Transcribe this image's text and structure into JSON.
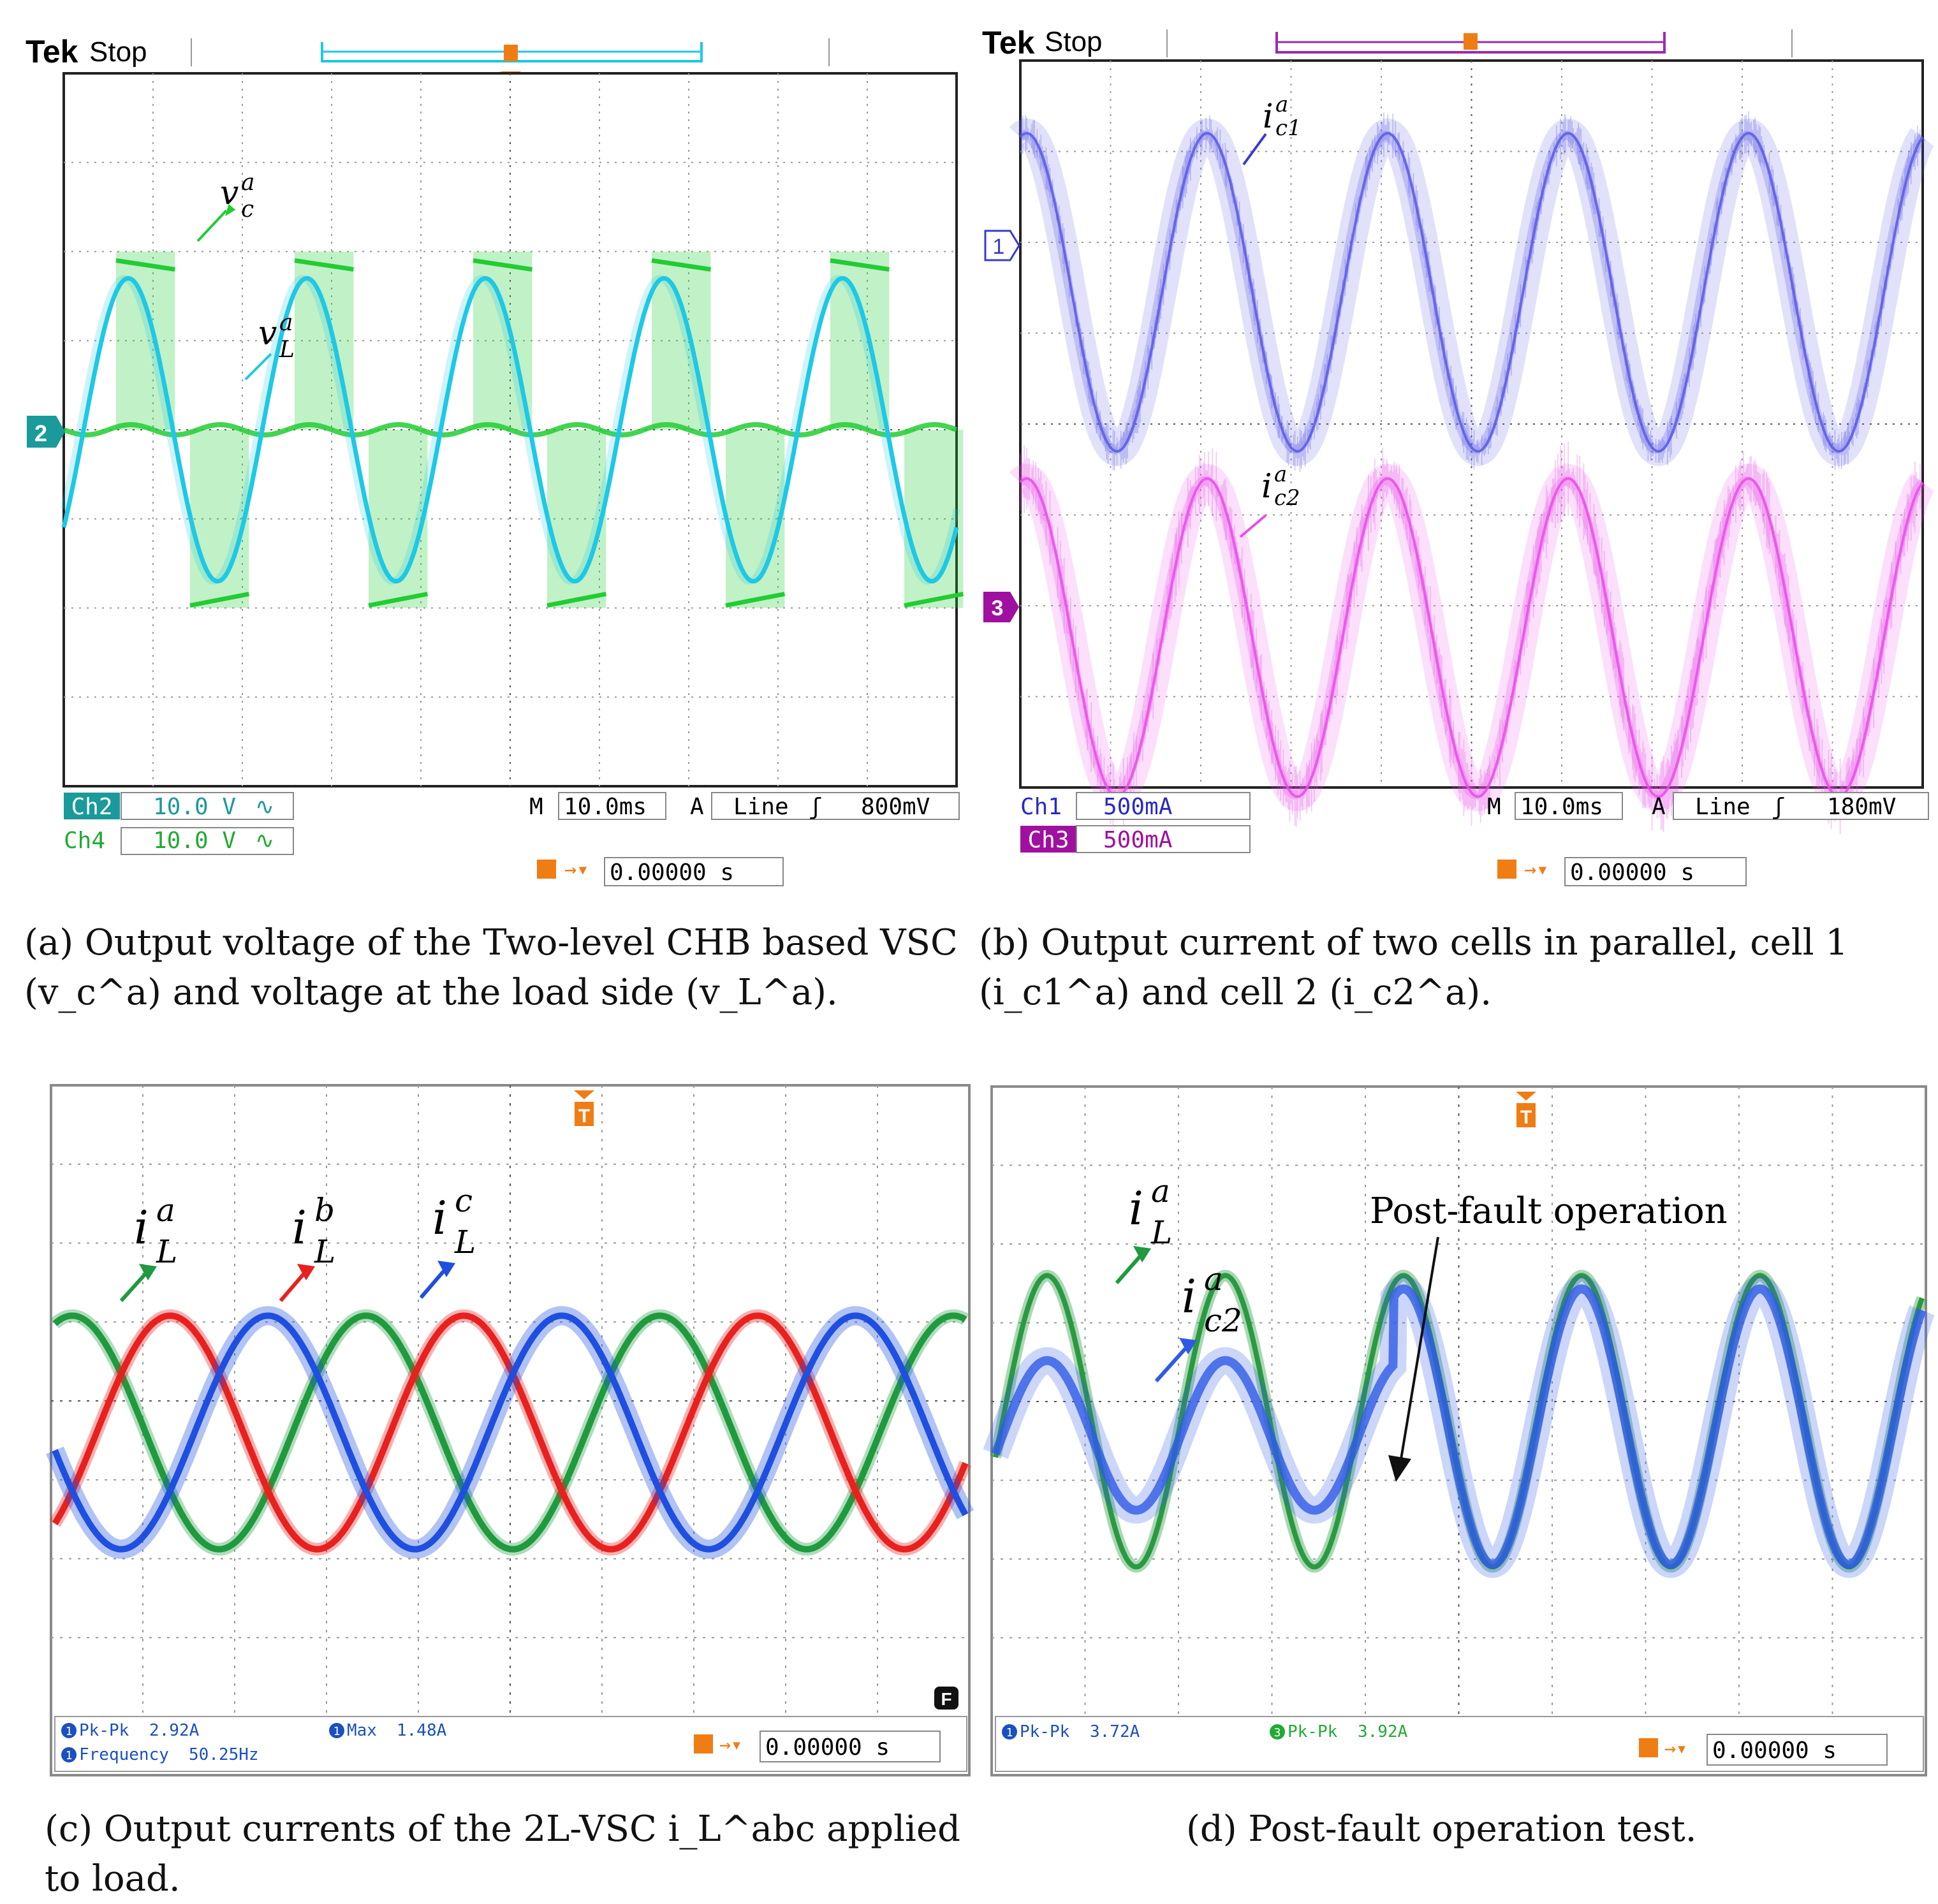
{
  "colors": {
    "ch2_cyan": "#1ec8e6",
    "ch4_green": "#22cc33",
    "ch1_blue": "#5a5ae6",
    "ch3_magenta": "#e84de8",
    "trigger_orange": "#f07d14",
    "ia_green": "#1f9a3e",
    "ib_red": "#e8201e",
    "ic_blue": "#1f4fe0",
    "post_green": "#2a9a42",
    "post_blue": "#2f5ae6",
    "ch2_badge": "#1a9a9a",
    "ch3_badge": "#a010a0"
  },
  "captions": {
    "a": "(a) Output voltage of the Two-level CHB based VSC (v_c^a) and voltage at the load side (v_L^a).",
    "b": "(b) Output current of two cells in parallel, cell 1 (i_c1^a) and cell 2 (i_c2^a).",
    "c": "(c) Output currents of the 2L-VSC i_L^abc applied to load.",
    "d": "(d) Post-fault operation test."
  },
  "chart_data": [
    {
      "panel": "a",
      "type": "line",
      "header": {
        "brand": "Tek",
        "state": "Stop",
        "trigger_marker": "T"
      },
      "grid": true,
      "divisions": {
        "x": 10,
        "y": 8
      },
      "time_per_div": "10.0ms",
      "series": [
        {
          "name": "v_L^a",
          "channel": "Ch2",
          "scale": "10.0 V",
          "coupling": "∿",
          "badge": "2",
          "waveform": "sine",
          "cycles": 5,
          "amplitude_div": 1.7,
          "offset_div": 0
        },
        {
          "name": "v_c^a",
          "channel": "Ch4",
          "scale": "10.0 V",
          "coupling": "∿",
          "waveform": "square",
          "cycles": 5,
          "amplitude_div": 2.0,
          "offset_div": 0
        }
      ],
      "labels": {
        "top": {
          "main": "v",
          "sup": "a",
          "sub": "c"
        },
        "bottom": {
          "main": "v",
          "sup": "a",
          "sub": "L"
        }
      },
      "footer": {
        "ch2_label": "Ch2",
        "ch2_scale": "10.0 V",
        "ch2_coupling": "∿",
        "ch4_label": "Ch4",
        "ch4_scale": "10.0 V",
        "ch4_coupling": "∿",
        "m_label": "M",
        "timebase": "10.0ms",
        "a_label": "A",
        "source": "Line",
        "slope": "ʃ",
        "level": "800mV",
        "trigger_time": "0.00000 s"
      }
    },
    {
      "panel": "b",
      "type": "line",
      "header": {
        "brand": "Tek",
        "state": "Stop",
        "trigger_marker": "T"
      },
      "grid": true,
      "divisions": {
        "x": 10,
        "y": 8
      },
      "time_per_div": "10.0ms",
      "series": [
        {
          "name": "i_c1^a",
          "channel": "Ch1",
          "scale": "500mA",
          "badge": "1",
          "waveform": "sine",
          "cycles": 5,
          "amplitude_div": 1.75,
          "offset_div": 1.45
        },
        {
          "name": "i_c2^a",
          "channel": "Ch3",
          "scale": "500mA",
          "badge": "3",
          "waveform": "sine",
          "cycles": 5,
          "amplitude_div": 1.75,
          "offset_div": -2.35
        }
      ],
      "labels": {
        "top": {
          "main": "i",
          "sup": "a",
          "sub": "c1"
        },
        "bottom": {
          "main": "i",
          "sup": "a",
          "sub": "c2"
        }
      },
      "footer": {
        "ch1_label": "Ch1",
        "ch1_scale": "500mA",
        "ch3_label": "Ch3",
        "ch3_scale": "500mA",
        "m_label": "M",
        "timebase": "10.0ms",
        "a_label": "A",
        "source": "Line",
        "slope": "ʃ",
        "level": "180mV",
        "trigger_time": "0.00000 s"
      }
    },
    {
      "panel": "c",
      "type": "line",
      "grid": true,
      "divisions": {
        "x": 10,
        "y": 8
      },
      "series": [
        {
          "name": "i_L^a",
          "phase_deg": 0,
          "cycles": 3.1,
          "amplitude_div": 1.48,
          "offset_div": 0.4
        },
        {
          "name": "i_L^b",
          "phase_deg": -120,
          "cycles": 3.1,
          "amplitude_div": 1.48,
          "offset_div": 0.4
        },
        {
          "name": "i_L^c",
          "phase_deg": 120,
          "cycles": 3.1,
          "amplitude_div": 1.48,
          "offset_div": 0.4
        }
      ],
      "labels": [
        {
          "main": "i",
          "sup": "a",
          "sub": "L"
        },
        {
          "main": "i",
          "sup": "b",
          "sub": "L"
        },
        {
          "main": "i",
          "sup": "c",
          "sub": "L"
        }
      ],
      "measurements": {
        "pkpk_label": "Pk-Pk",
        "pkpk": "2.92A",
        "max_label": "Max",
        "max": "1.48A",
        "freq_label": "Frequency",
        "frequency": "50.25Hz",
        "badge": "1",
        "f_badge": "F"
      },
      "footer": {
        "trigger_time": "0.00000 s"
      }
    },
    {
      "panel": "d",
      "type": "line",
      "grid": true,
      "divisions": {
        "x": 10,
        "y": 8
      },
      "annotation": "Post-fault operation",
      "series": [
        {
          "name": "i_L^a",
          "cycles": 5.2,
          "amplitude_div": 1.85
        },
        {
          "name": "i_c2^a",
          "cycles": 5.2,
          "amplitude_pre_fault_div": 0.95,
          "amplitude_post_fault_div": 1.75
        }
      ],
      "labels": [
        {
          "main": "i",
          "sup": "a",
          "sub": "L"
        },
        {
          "main": "i",
          "sup": "a",
          "sub": "c2"
        }
      ],
      "measurements": {
        "ch1_badge": "1",
        "ch1_label": "Pk-Pk",
        "ch1_value": "3.72A",
        "ch3_badge": "3",
        "ch3_label": "Pk-Pk",
        "ch3_value": "3.92A"
      },
      "footer": {
        "trigger_time": "0.00000 s"
      }
    }
  ]
}
